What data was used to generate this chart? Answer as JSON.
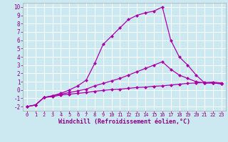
{
  "xlabel": "Windchill (Refroidissement éolien,°C)",
  "bg_color": "#cce8f0",
  "grid_color": "#ffffff",
  "line_color": "#aa00aa",
  "xlim": [
    -0.5,
    23.5
  ],
  "ylim": [
    -2.5,
    10.5
  ],
  "x_ticks": [
    0,
    1,
    2,
    3,
    4,
    5,
    6,
    7,
    8,
    9,
    10,
    11,
    12,
    13,
    14,
    15,
    16,
    17,
    18,
    19,
    20,
    21,
    22,
    23
  ],
  "y_ticks": [
    -2,
    -1,
    0,
    1,
    2,
    3,
    4,
    5,
    6,
    7,
    8,
    9,
    10
  ],
  "line1_x": [
    0,
    1,
    2,
    3,
    4,
    5,
    6,
    7,
    8,
    9,
    10,
    11,
    12,
    13,
    14,
    15,
    16,
    17,
    18,
    19,
    20,
    21,
    22,
    23
  ],
  "line1_y": [
    -2.0,
    -1.8,
    -0.9,
    -0.8,
    -0.6,
    -0.5,
    -0.4,
    -0.3,
    -0.15,
    -0.05,
    0.05,
    0.1,
    0.2,
    0.3,
    0.35,
    0.45,
    0.5,
    0.6,
    0.7,
    0.8,
    0.85,
    0.9,
    0.95,
    0.85
  ],
  "line2_x": [
    0,
    1,
    2,
    3,
    4,
    5,
    6,
    7,
    8,
    9,
    10,
    11,
    12,
    13,
    14,
    15,
    16,
    17,
    18,
    19,
    20,
    21,
    22,
    23
  ],
  "line2_y": [
    -2.0,
    -1.8,
    -0.9,
    -0.7,
    -0.5,
    -0.3,
    -0.1,
    0.1,
    0.5,
    0.8,
    1.1,
    1.4,
    1.8,
    2.2,
    2.6,
    3.0,
    3.4,
    2.5,
    1.8,
    1.4,
    1.0,
    0.85,
    0.85,
    0.75
  ],
  "line3_x": [
    0,
    1,
    2,
    3,
    4,
    5,
    6,
    7,
    8,
    9,
    10,
    11,
    12,
    13,
    14,
    15,
    16,
    17,
    18,
    19,
    20,
    21,
    22,
    23
  ],
  "line3_y": [
    -2.0,
    -1.8,
    -0.9,
    -0.7,
    -0.4,
    0.0,
    0.5,
    1.2,
    3.2,
    5.5,
    6.5,
    7.5,
    8.5,
    9.0,
    9.3,
    9.5,
    10.0,
    6.0,
    4.0,
    3.0,
    1.8,
    0.85,
    0.85,
    0.75
  ]
}
